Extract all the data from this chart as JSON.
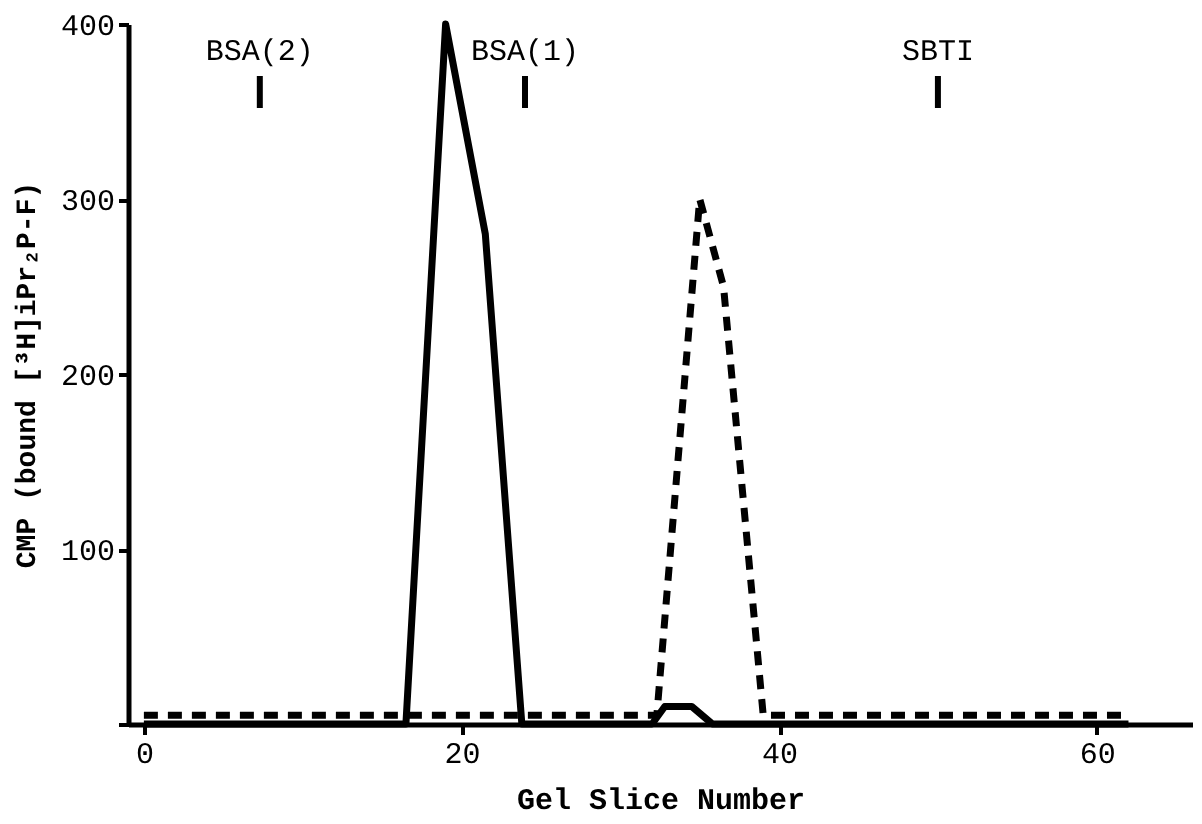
{
  "chart_data": {
    "type": "line",
    "xlabel": "Gel Slice Number",
    "ylabel": "CMP (bound [³H]iPr₂P-F)",
    "xlim": [
      -1,
      66
    ],
    "xticks": [
      0,
      20,
      40,
      60
    ],
    "ylim": [
      0,
      400
    ],
    "yticks": [
      {
        "value": 0,
        "label": null
      },
      100,
      200,
      300,
      400
    ],
    "grid": false,
    "marker": "none",
    "series": [
      {
        "color": "#000000",
        "line_style": "solid",
        "x": [
          0,
          16.5,
          19,
          21.5,
          23.8,
          32,
          32.8,
          34.5,
          35.8,
          62
        ],
        "values": [
          0,
          0,
          400,
          280,
          0,
          0,
          10,
          10,
          0,
          0
        ]
      },
      {
        "color": "#000000",
        "line_style": "dashed",
        "x": [
          0,
          16.5,
          23.8,
          32.3,
          35,
          36.5,
          39,
          62
        ],
        "values": [
          5,
          5,
          5,
          5,
          300,
          250,
          5,
          5
        ]
      }
    ],
    "ref_lines": [
      {
        "axis": "x",
        "value": 7.3,
        "label": "BSA(2)"
      },
      {
        "axis": "x",
        "value": 24,
        "label": "BSA(1)"
      },
      {
        "axis": "x",
        "value": 50,
        "label": "SBTI"
      }
    ]
  }
}
